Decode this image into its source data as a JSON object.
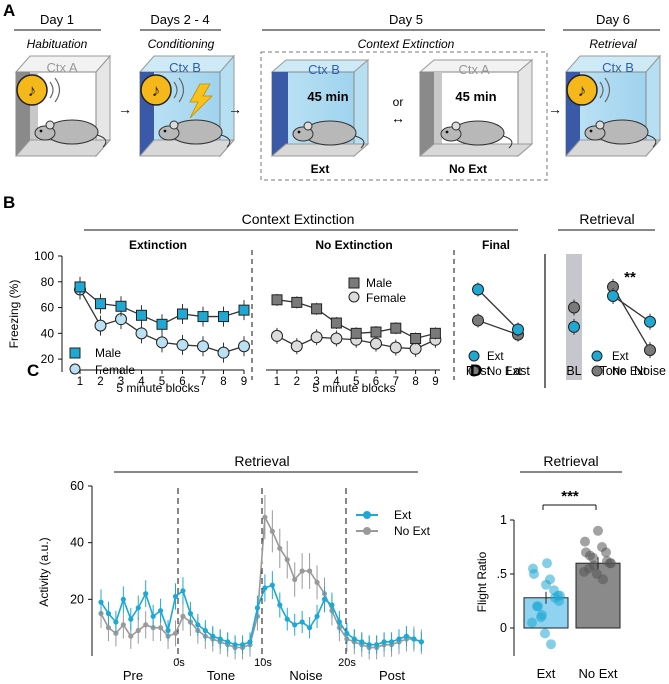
{
  "panelA": {
    "letter": "A",
    "stages": [
      {
        "day": "Day 1",
        "label": "Habituation",
        "ctx": "Ctx A"
      },
      {
        "day": "Days 2 - 4",
        "label": "Conditioning",
        "ctx": "Ctx B"
      },
      {
        "day": "Day 5",
        "label": "Context Extinction",
        "ctx_ext": "Ctx B",
        "ctx_noext": "Ctx A",
        "duration": "45 min",
        "ext_label": "Ext",
        "noext_label": "No Ext",
        "or_label": "or"
      },
      {
        "day": "Day 6",
        "label": "Retrieval",
        "ctx": "Ctx B"
      }
    ]
  },
  "panelB": {
    "letter": "B",
    "header_extinction": "Context Extinction",
    "header_retrieval": "Retrieval",
    "ylabel": "Freezing (%)",
    "yticks": [
      "20",
      "40",
      "60",
      "80",
      "100"
    ],
    "sub_extinction": "Extinction",
    "sub_noextinction": "No Extinction",
    "sub_final": "Final",
    "xlabel_blocks": "5 minute blocks",
    "block_ticks": [
      "1",
      "2",
      "3",
      "4",
      "5",
      "6",
      "7",
      "8",
      "9"
    ],
    "legend_male": "Male",
    "legend_female": "Female",
    "final_ticks": [
      "First",
      "Last"
    ],
    "retrieval_ticks": [
      "BL",
      "Tone",
      "Noise"
    ],
    "legend_ext": "Ext",
    "legend_noext": "No Ext",
    "significance": "**",
    "colors": {
      "cyan": "#1fa8d2",
      "light_blue": "#b9e0f3",
      "dark_gray": "#7a7a7a",
      "light_gray": "#dcdcdc"
    }
  },
  "chart_data": [
    {
      "type": "line",
      "title": "Extinction",
      "xlabel": "5 minute blocks",
      "ylabel": "Freezing (%)",
      "ylim": [
        10,
        100
      ],
      "x": [
        1,
        2,
        3,
        4,
        5,
        6,
        7,
        8,
        9
      ],
      "series": [
        {
          "name": "Male",
          "values": [
            76,
            63,
            61,
            54,
            47,
            55,
            53,
            53,
            58
          ]
        },
        {
          "name": "Female",
          "values": [
            74,
            46,
            51,
            40,
            33,
            31,
            30,
            25,
            30
          ]
        }
      ]
    },
    {
      "type": "line",
      "title": "No Extinction",
      "xlabel": "5 minute blocks",
      "ylabel": "Freezing (%)",
      "ylim": [
        10,
        100
      ],
      "x": [
        1,
        2,
        3,
        4,
        5,
        6,
        7,
        8,
        9
      ],
      "series": [
        {
          "name": "Male",
          "values": [
            66,
            64,
            59,
            48,
            40,
            41,
            44,
            36,
            40
          ]
        },
        {
          "name": "Female",
          "values": [
            38,
            30,
            37,
            36,
            35,
            32,
            29,
            28,
            35
          ]
        }
      ]
    },
    {
      "type": "line",
      "title": "Final",
      "ylabel": "Freezing (%)",
      "ylim": [
        10,
        100
      ],
      "categories": [
        "First",
        "Last"
      ],
      "series": [
        {
          "name": "Ext",
          "values": [
            74,
            43
          ]
        },
        {
          "name": "No Ext",
          "values": [
            50,
            39
          ]
        }
      ]
    },
    {
      "type": "line",
      "title": "Retrieval",
      "ylabel": "Freezing (%)",
      "ylim": [
        10,
        100
      ],
      "categories": [
        "BL",
        "Tone",
        "Noise"
      ],
      "series": [
        {
          "name": "Ext",
          "values": [
            45,
            69,
            49
          ]
        },
        {
          "name": "No Ext",
          "values": [
            60,
            76,
            27
          ]
        }
      ],
      "annotations": [
        "**"
      ]
    },
    {
      "type": "line",
      "title": "Retrieval",
      "ylabel": "Activity (a.u.)",
      "ylim": [
        0,
        60
      ],
      "yticks": [
        20,
        40,
        60
      ],
      "x": [
        1,
        2,
        3,
        4,
        5,
        6,
        7,
        8,
        9,
        10,
        11,
        12,
        13,
        14,
        15,
        16,
        17,
        18,
        19,
        20,
        21,
        22,
        23,
        24,
        25,
        26,
        27,
        28,
        29,
        30,
        31,
        32,
        33,
        34,
        35,
        36,
        37,
        38,
        39,
        40,
        41,
        42,
        43,
        44
      ],
      "series": [
        {
          "name": "Ext",
          "values": [
            19,
            15,
            12,
            20,
            13,
            17,
            22,
            14,
            16,
            9,
            21,
            23,
            15,
            11,
            9,
            7,
            6,
            5,
            4,
            4,
            5,
            17,
            24,
            25,
            18,
            13,
            11,
            12,
            10,
            14,
            20,
            18,
            12,
            8,
            6,
            5,
            4,
            4,
            5,
            5,
            6,
            7,
            6,
            5
          ]
        },
        {
          "name": "No Ext",
          "values": [
            15,
            10,
            8,
            11,
            7,
            9,
            11,
            10,
            10,
            7,
            8,
            14,
            12,
            9,
            7,
            6,
            5,
            4,
            3,
            3,
            4,
            14,
            49,
            44,
            38,
            34,
            27,
            30,
            30,
            26,
            22,
            16,
            10,
            6,
            5,
            4,
            3,
            3,
            4,
            4,
            5,
            6,
            6,
            5
          ]
        }
      ],
      "phases": [
        "Pre",
        "Tone",
        "Noise",
        "Post"
      ],
      "phase_ticks": [
        "0s",
        "10s",
        "20s"
      ]
    },
    {
      "type": "bar",
      "title": "Retrieval",
      "ylabel": "Flight Ratio",
      "categories": [
        "Ext",
        "No Ext"
      ],
      "values": [
        0.28,
        0.6
      ],
      "ylim": [
        -0.2,
        1
      ],
      "yticks": [
        "0",
        ".5",
        "1"
      ],
      "annotations": [
        "***"
      ]
    }
  ],
  "panelC": {
    "letter": "C",
    "title": "Retrieval",
    "ylabel": "Activity (a.u.)",
    "yticks": [
      "20",
      "40",
      "60"
    ],
    "phases": [
      "Pre",
      "Tone",
      "Noise",
      "Post"
    ],
    "phase_ticks": [
      "0s",
      "10s",
      "20s"
    ],
    "legend_ext": "Ext",
    "legend_noext": "No Ext"
  },
  "panelD": {
    "letter": "D",
    "title": "Retrieval",
    "ylabel": "Flight Ratio",
    "yticks": [
      "0",
      ".5",
      "1"
    ],
    "categories": [
      "Ext",
      "No Ext"
    ],
    "significance": "***"
  }
}
